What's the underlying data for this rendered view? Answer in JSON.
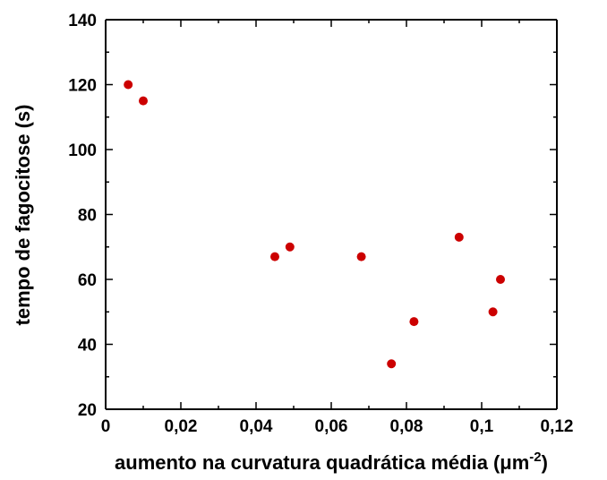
{
  "chart_data": {
    "type": "scatter",
    "title": "",
    "xlabel": "aumento na curvatura quadrática média",
    "xlabel_unit_prefix": "(",
    "xlabel_unit_mu": "μ",
    "xlabel_unit_base": "m",
    "xlabel_unit_exp": "-2",
    "xlabel_unit_suffix": ")",
    "ylabel": "tempo de fagocitose (s)",
    "xlim": [
      0,
      0.12
    ],
    "ylim": [
      20,
      140
    ],
    "xticks": [
      0,
      0.02,
      0.04,
      0.06,
      0.08,
      0.1,
      0.12
    ],
    "xtick_labels": [
      "0",
      "0,02",
      "0,04",
      "0,06",
      "0,08",
      "0,1",
      "0,12"
    ],
    "yticks": [
      20,
      40,
      60,
      80,
      100,
      120,
      140
    ],
    "ytick_labels": [
      "20",
      "40",
      "60",
      "80",
      "100",
      "120",
      "140"
    ],
    "grid": false,
    "marker_color": "#cc0000",
    "series": [
      {
        "x": [
          0.006,
          0.01,
          0.045,
          0.049,
          0.068,
          0.076,
          0.082,
          0.094,
          0.103,
          0.105
        ],
        "y": [
          120,
          115,
          67,
          70,
          67,
          34,
          47,
          73,
          50,
          60
        ]
      }
    ]
  }
}
